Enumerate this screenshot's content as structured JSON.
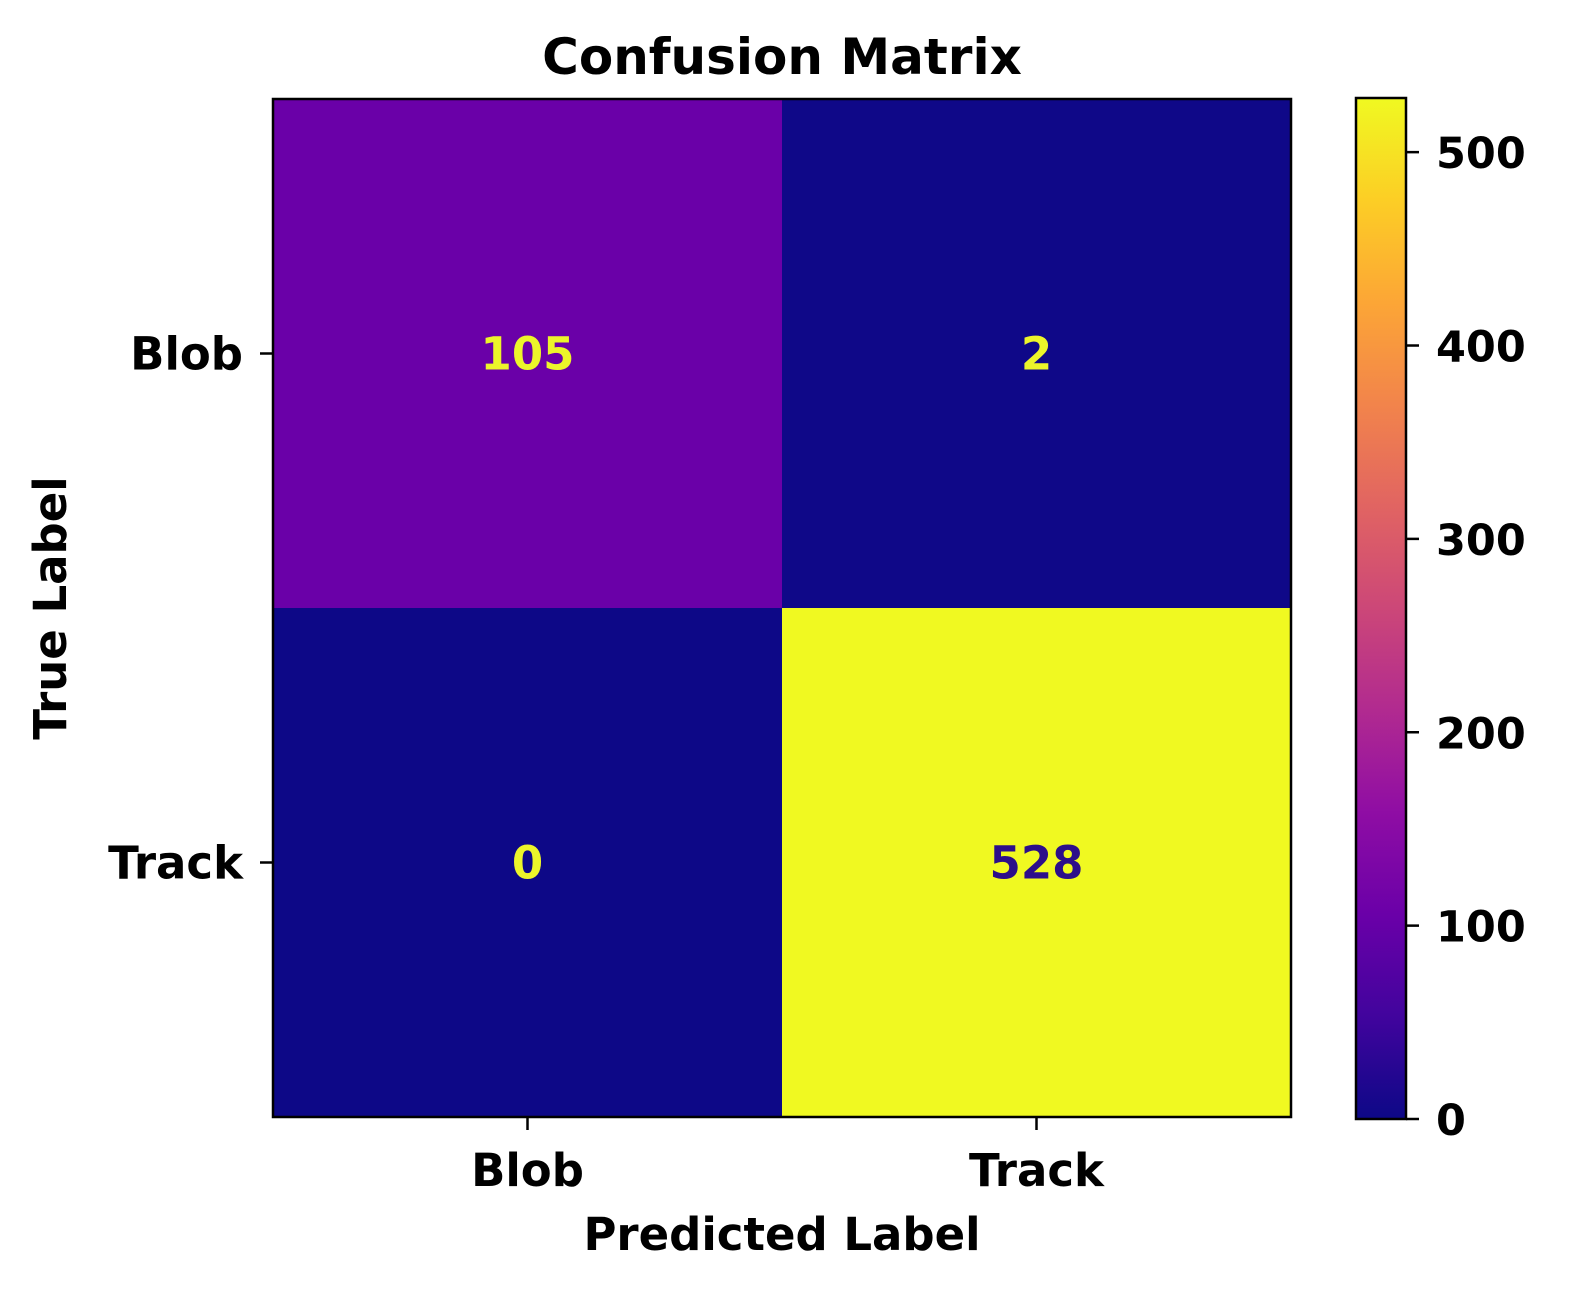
{
  "chart_data": {
    "type": "heatmap",
    "title": "Confusion Matrix",
    "xlabel": "Predicted Label",
    "ylabel": "True Label",
    "x_categories": [
      "Blob",
      "Track"
    ],
    "y_categories": [
      "Blob",
      "Track"
    ],
    "values": [
      [
        105,
        2
      ],
      [
        0,
        528
      ]
    ],
    "colormap": "plasma",
    "colorbar": {
      "range": [
        0,
        528
      ],
      "ticks": [
        0,
        100,
        200,
        300,
        400,
        500
      ]
    },
    "cell_text_colors": {
      "light": "#ecf52a",
      "dark": "#2c0e8a"
    },
    "grid": false
  }
}
